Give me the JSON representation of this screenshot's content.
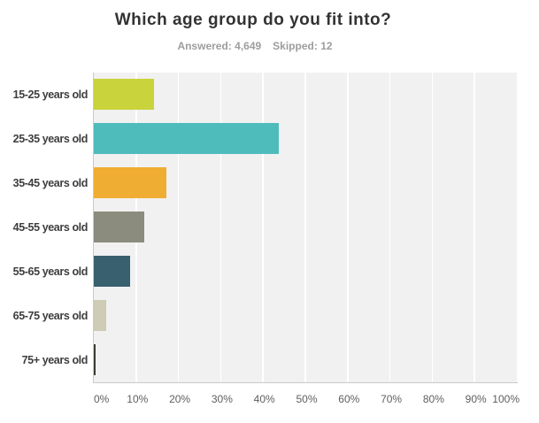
{
  "chart": {
    "title": "Which age group do you fit into?",
    "stats": {
      "answered_label": "Answered:",
      "answered_value": "4,649",
      "skipped_label": "Skipped:",
      "skipped_value": "12"
    }
  },
  "chart_data": {
    "type": "bar",
    "orientation": "horizontal",
    "title": "Which age group do you fit into?",
    "subtitle": "Answered: 4,649 Skipped: 12",
    "categories": [
      "15-25 years old",
      "25-35 years old",
      "35-45 years old",
      "45-55 years old",
      "55-65 years old",
      "65-75 years old",
      "75+ years old"
    ],
    "values": [
      14.2,
      43.7,
      17.1,
      11.9,
      8.5,
      2.9,
      0.5
    ],
    "unit": "%",
    "bar_colors": [
      "#c9d33c",
      "#4fbcbc",
      "#f0ad33",
      "#8c8c7e",
      "#38606f",
      "#cecbb6",
      "#3d3d32"
    ],
    "xlabel": "",
    "ylabel": "",
    "xlim": [
      0,
      100
    ],
    "x_tick_step": 10,
    "x_tick_labels": [
      "0%",
      "10%",
      "20%",
      "30%",
      "40%",
      "50%",
      "60%",
      "70%",
      "80%",
      "90%",
      "100%"
    ],
    "grid": "vertical-white-gridlines",
    "legend": "none",
    "plot_background": "#f1f1f1",
    "axis_line_color": "#ccc8c8"
  }
}
